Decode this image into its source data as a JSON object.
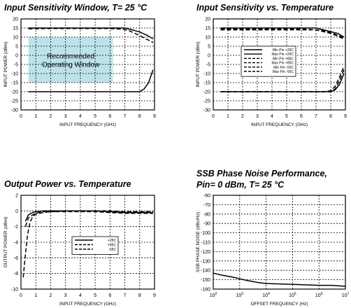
{
  "chart_data": [
    {
      "type": "line",
      "title": "Input Sensitivity Window, T= 25 °C",
      "xlabel": "INPUT FREQUENCY (GHz)",
      "ylabel": "INPUT POWER (dBm)",
      "xlim": [
        0,
        9
      ],
      "ylim": [
        -30,
        20
      ],
      "xticks": [
        "0",
        "1",
        "2",
        "3",
        "4",
        "5",
        "6",
        "7",
        "8",
        "9"
      ],
      "yticks": [
        "20",
        "15",
        "10",
        "5",
        "0",
        "-5",
        "-10",
        "-15",
        "-20",
        "-25",
        "-30"
      ],
      "grid": true,
      "annotation_box": {
        "label_line1": "Recommended",
        "label_line2": "Operating Window",
        "x_range": [
          0.5,
          6.2
        ],
        "y_range": [
          -15,
          10
        ],
        "color": "#bde3ea"
      },
      "series": [
        {
          "style": "dashed",
          "x": [
            0.5,
            1,
            2,
            3,
            4,
            5,
            6,
            6.9,
            7.3,
            7.7,
            8.1,
            8.4,
            8.7,
            8.9
          ],
          "y": [
            14.5,
            14.6,
            14.7,
            14.7,
            14.7,
            14.7,
            14.7,
            14.3,
            13.5,
            12,
            10.5,
            9,
            8,
            7
          ]
        },
        {
          "style": "solid",
          "x": [
            0.5,
            1,
            2,
            3,
            4,
            5,
            6,
            7,
            7.5,
            8,
            8.3,
            8.6,
            8.9
          ],
          "y": [
            -20,
            -20,
            -20,
            -20,
            -20,
            -20,
            -20,
            -20,
            -20,
            -20,
            -18.5,
            -15,
            -8
          ]
        },
        {
          "style": "solid",
          "x": [
            0.5,
            1,
            2,
            3,
            4,
            5,
            6,
            7,
            7.2,
            7.5,
            8,
            8.5,
            8.9
          ],
          "y": [
            15,
            15,
            15,
            15,
            15,
            15,
            15,
            15,
            14.6,
            14,
            12.8,
            11,
            9
          ]
        }
      ]
    },
    {
      "type": "line",
      "title": "Input Sensitivity vs. Temperature",
      "xlabel": "INPUT FREQUENCY (GHz)",
      "ylabel": "INPUT POWER (dBm)",
      "xlim": [
        0,
        9
      ],
      "ylim": [
        -30,
        20
      ],
      "xticks": [
        "0",
        "1",
        "2",
        "3",
        "4",
        "5",
        "6",
        "7",
        "8",
        "9"
      ],
      "yticks": [
        "20",
        "15",
        "10",
        "5",
        "0",
        "-5",
        "-10",
        "-15",
        "-20",
        "-25",
        "-30"
      ],
      "grid": true,
      "legend": [
        "Min Pin +25C",
        "Max Pin +25C",
        "Min Pin +85C",
        "Max Pin +85C",
        "Min Pin -55C",
        "Max Pin -55C"
      ],
      "series": [
        {
          "name": "Max Pin +25C",
          "style": "solid",
          "x": [
            0.5,
            1,
            2,
            3,
            4,
            5,
            6,
            7,
            7.5,
            8,
            8.5,
            8.9
          ],
          "y": [
            15,
            15,
            15,
            15,
            15,
            15,
            15,
            15,
            14,
            13,
            12,
            10
          ]
        },
        {
          "name": "Max Pin +85C",
          "style": "dashed",
          "x": [
            0.5,
            1,
            2,
            3,
            4,
            5,
            6,
            7,
            7.5,
            8,
            8.5,
            8.9
          ],
          "y": [
            14.5,
            14.5,
            14.5,
            14.5,
            14.5,
            14.5,
            14.5,
            14,
            13,
            12,
            10.5,
            9
          ]
        },
        {
          "name": "Max Pin -55C",
          "style": "dashed",
          "x": [
            0.5,
            1,
            2,
            3,
            4,
            5,
            6,
            7,
            7.5,
            8,
            8.5,
            8.9
          ],
          "y": [
            14,
            14,
            14,
            14,
            14,
            14,
            14,
            14,
            13.5,
            12.5,
            11,
            9.5
          ]
        },
        {
          "name": "Min Pin +25C",
          "style": "solid",
          "x": [
            0.5,
            1,
            2,
            3,
            4,
            5,
            6,
            7,
            7.5,
            8,
            8.3,
            8.6,
            8.9
          ],
          "y": [
            -20,
            -20,
            -20,
            -20,
            -20,
            -20,
            -20,
            -20,
            -20,
            -20,
            -19,
            -16,
            -10
          ]
        },
        {
          "name": "Min Pin +85C",
          "style": "dashed",
          "x": [
            0.5,
            1,
            2,
            3,
            4,
            5,
            6,
            7,
            7.5,
            8,
            8.3,
            8.6,
            8.9
          ],
          "y": [
            -20,
            -20,
            -20,
            -20,
            -20,
            -20,
            -20,
            -20,
            -20,
            -20,
            -18.5,
            -14,
            -8
          ]
        },
        {
          "name": "Min Pin -55C",
          "style": "dashed",
          "x": [
            0.5,
            1,
            2,
            3,
            4,
            5,
            6,
            7,
            7.5,
            8,
            8.3,
            8.6,
            8.9
          ],
          "y": [
            -20,
            -20,
            -20,
            -20,
            -20,
            -20,
            -20,
            -20,
            -20,
            -19.5,
            -17,
            -12,
            -6
          ]
        }
      ]
    },
    {
      "type": "line",
      "title": "Output Power vs. Temperature",
      "xlabel": "INPUT FREQUENCY (GHz)",
      "ylabel": "OUTPUT POWER (dBm)",
      "xlim": [
        0,
        9
      ],
      "ylim": [
        -10,
        2
      ],
      "xticks": [
        "0",
        "1",
        "2",
        "3",
        "4",
        "5",
        "6",
        "7",
        "8",
        "9"
      ],
      "yticks": [
        "2",
        "0",
        "-2",
        "-4",
        "-6",
        "-8",
        "-10"
      ],
      "grid": true,
      "legend": [
        "+25C",
        "+85C",
        "-55C"
      ],
      "series": [
        {
          "name": "+25C",
          "style": "solid",
          "x": [
            0.3,
            0.5,
            0.8,
            1,
            1.5,
            2,
            3,
            4,
            5,
            6,
            7,
            8,
            8.9
          ],
          "y": [
            -1.3,
            -0.5,
            -0.2,
            -0.1,
            0,
            0,
            0,
            0,
            0,
            -0.1,
            -0.2,
            -0.2,
            -0.2
          ]
        },
        {
          "name": "+85C",
          "style": "dashed",
          "x": [
            0.3,
            0.5,
            0.8,
            1,
            1.5,
            2,
            3,
            4,
            5,
            6,
            7,
            8,
            8.9
          ],
          "y": [
            -2,
            -0.9,
            -0.5,
            -0.3,
            -0.1,
            -0.1,
            -0.1,
            -0.1,
            -0.1,
            -0.2,
            -0.3,
            -0.3,
            -0.3
          ]
        },
        {
          "name": "-55C",
          "style": "dashed",
          "x": [
            0.15,
            0.3,
            0.45,
            0.6,
            0.8,
            1,
            1.5,
            2,
            3,
            4,
            5,
            6,
            7,
            8,
            8.9
          ],
          "y": [
            -8.5,
            -5.5,
            -3,
            -1.5,
            -0.7,
            -0.4,
            -0.2,
            -0.1,
            0,
            0,
            0,
            0,
            -0.1,
            -0.1,
            -0.1
          ]
        }
      ]
    },
    {
      "type": "line",
      "title": "SSB Phase Noise Performance,",
      "subtitle": "Pin= 0 dBm, T= 25 °C",
      "xlabel": "OFFSET FREQUENCY (Hz)",
      "ylabel": "SSB PHASE NOISE (dBc/Hz)",
      "x_scale": "log",
      "xlim": [
        100,
        10000000
      ],
      "ylim": [
        -160,
        -60
      ],
      "xticks": [
        "10",
        "10",
        "10",
        "10",
        "10",
        "10"
      ],
      "xtick_exponents": [
        "2",
        "3",
        "4",
        "5",
        "6",
        "7"
      ],
      "yticks": [
        "-60",
        "-70",
        "-80",
        "-90",
        "-100",
        "-110",
        "-120",
        "-130",
        "-140",
        "-150",
        "-160"
      ],
      "grid": true,
      "series": [
        {
          "style": "solid",
          "x": [
            100,
            200,
            500,
            1000,
            2000,
            5000,
            10000,
            100000,
            1000000,
            3000000,
            10000000
          ],
          "y": [
            -143,
            -145,
            -147,
            -149,
            -151,
            -153,
            -154,
            -155,
            -156,
            -156,
            -157
          ]
        }
      ]
    }
  ]
}
